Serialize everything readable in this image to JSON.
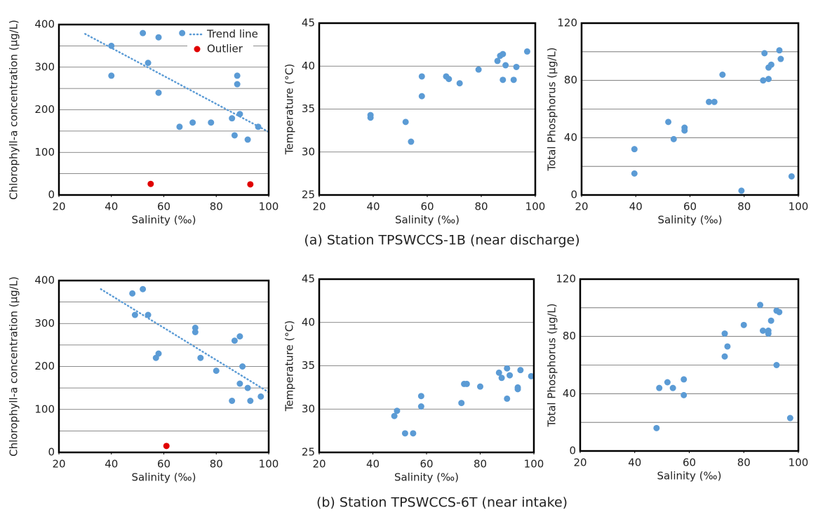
{
  "captions": [
    "(a) Station TPSWCCS-1B (near discharge)",
    "(b) Station TPSWCCS-6T (near intake)"
  ],
  "chart_data": [
    {
      "type": "scatter",
      "x_label": "Salinity (‰)",
      "y_label": "Chlorophyll-a concentration (µg/L)",
      "xlim": [
        20,
        100
      ],
      "xticks": [
        20,
        40,
        60,
        80,
        100
      ],
      "ylim": [
        0,
        400
      ],
      "yticks": [
        0,
        100,
        200,
        300,
        400
      ],
      "grid": true,
      "minor_grid": true,
      "legend": "upper right",
      "series": [
        {
          "mode": "points",
          "color": "#5b9bd5",
          "x": [
            40,
            40,
            52,
            58,
            67,
            54,
            58,
            66,
            71,
            78,
            88,
            88,
            89,
            86,
            87,
            92,
            96
          ],
          "values": [
            350,
            280,
            380,
            370,
            380,
            310,
            240,
            160,
            170,
            170,
            280,
            260,
            190,
            180,
            140,
            130,
            160
          ]
        },
        {
          "name": "Trend line",
          "mode": "line",
          "color": "#5b9bd5",
          "x": [
            30,
            100
          ],
          "values": [
            378,
            148
          ]
        },
        {
          "name": "Outlier",
          "mode": "points",
          "color": "#e00000",
          "x": [
            55,
            93
          ],
          "values": [
            26,
            25
          ]
        }
      ]
    },
    {
      "type": "scatter",
      "x_label": "Salinity (‰)",
      "y_label": "Temperature (°C)",
      "xlim": [
        20,
        100
      ],
      "xticks": [
        20,
        40,
        60,
        80,
        100
      ],
      "ylim": [
        25,
        45
      ],
      "yticks": [
        25,
        30,
        35,
        40,
        45
      ],
      "grid": true,
      "minor_grid": false,
      "series": [
        {
          "mode": "points",
          "color": "#5b9bd5",
          "x": [
            39,
            39,
            52,
            54,
            58,
            58,
            67,
            68,
            72,
            79,
            86,
            87,
            88,
            88,
            89,
            92,
            93,
            97
          ],
          "values": [
            34.3,
            34.0,
            33.5,
            31.2,
            38.8,
            36.5,
            38.8,
            38.5,
            38.0,
            39.6,
            40.6,
            41.2,
            41.4,
            38.4,
            40.1,
            38.4,
            39.9,
            41.7
          ]
        }
      ]
    },
    {
      "type": "scatter",
      "x_label": "Salinity (‰)",
      "y_label": "Total Phosphorus (µg/L)",
      "xlim": [
        20,
        100
      ],
      "xticks": [
        20,
        40,
        60,
        80,
        100
      ],
      "ylim": [
        0,
        120
      ],
      "yticks": [
        0,
        40,
        80,
        120
      ],
      "grid": true,
      "minor_grid": true,
      "series": [
        {
          "mode": "points",
          "color": "#5b9bd5",
          "x": [
            39.5,
            39.5,
            52,
            54,
            58,
            58,
            67,
            69,
            72,
            79,
            87,
            87.5,
            89,
            89,
            90,
            93,
            93.5,
            97.5
          ],
          "values": [
            32,
            15,
            51,
            39,
            47,
            45,
            65,
            65,
            84,
            3,
            80,
            99,
            81,
            89,
            91,
            101,
            95,
            13
          ]
        }
      ]
    },
    {
      "type": "scatter",
      "x_label": "Salinity (‰)",
      "y_label": "Chlorophyll-a concentration (µg/L)",
      "xlim": [
        20,
        100
      ],
      "xticks": [
        20,
        40,
        60,
        80,
        100
      ],
      "ylim": [
        0,
        400
      ],
      "yticks": [
        0,
        100,
        200,
        300,
        400
      ],
      "grid": true,
      "minor_grid": true,
      "series": [
        {
          "mode": "points",
          "color": "#5b9bd5",
          "x": [
            48,
            49,
            52,
            54,
            57,
            58,
            72,
            72,
            74,
            80,
            87,
            89,
            89,
            90,
            86,
            92,
            93,
            97
          ],
          "values": [
            370,
            320,
            380,
            320,
            220,
            230,
            280,
            290,
            220,
            190,
            260,
            270,
            160,
            200,
            120,
            150,
            120,
            130
          ]
        },
        {
          "mode": "line",
          "color": "#5b9bd5",
          "x": [
            36,
            100
          ],
          "values": [
            380,
            140
          ]
        },
        {
          "mode": "points",
          "color": "#e00000",
          "x": [
            61
          ],
          "values": [
            15
          ]
        }
      ]
    },
    {
      "type": "scatter",
      "x_label": "Salinity (‰)",
      "y_label": "Temperature (°C)",
      "xlim": [
        20,
        100
      ],
      "xticks": [
        20,
        40,
        60,
        80,
        100
      ],
      "ylim": [
        25,
        45
      ],
      "yticks": [
        25,
        30,
        35,
        40,
        45
      ],
      "grid": true,
      "minor_grid": false,
      "series": [
        {
          "mode": "points",
          "color": "#5b9bd5",
          "x": [
            48,
            49,
            52,
            55,
            58,
            58,
            73,
            74,
            75,
            80,
            87,
            88,
            90,
            91,
            90,
            94,
            94,
            95,
            99
          ],
          "values": [
            29.2,
            29.8,
            27.2,
            27.2,
            31.5,
            30.3,
            30.7,
            32.9,
            32.9,
            32.6,
            34.2,
            33.6,
            34.7,
            33.9,
            31.2,
            32.5,
            32.3,
            34.5,
            33.8
          ]
        }
      ]
    },
    {
      "type": "scatter",
      "x_label": "Salinity (‰)",
      "y_label": "Total Phosphorus (µg/L)",
      "xlim": [
        20,
        100
      ],
      "xticks": [
        20,
        40,
        60,
        80,
        100
      ],
      "ylim": [
        0,
        120
      ],
      "yticks": [
        0,
        40,
        80,
        120
      ],
      "grid": true,
      "minor_grid": true,
      "series": [
        {
          "mode": "points",
          "color": "#5b9bd5",
          "x": [
            48,
            49,
            52,
            54,
            58,
            58,
            73,
            73,
            74,
            80,
            86,
            87,
            89,
            89,
            90,
            92,
            92,
            93,
            97
          ],
          "values": [
            16,
            44,
            48,
            44,
            39,
            50,
            82,
            66,
            73,
            88,
            102,
            84,
            84,
            82,
            91,
            60,
            98,
            97,
            23
          ]
        }
      ]
    }
  ]
}
